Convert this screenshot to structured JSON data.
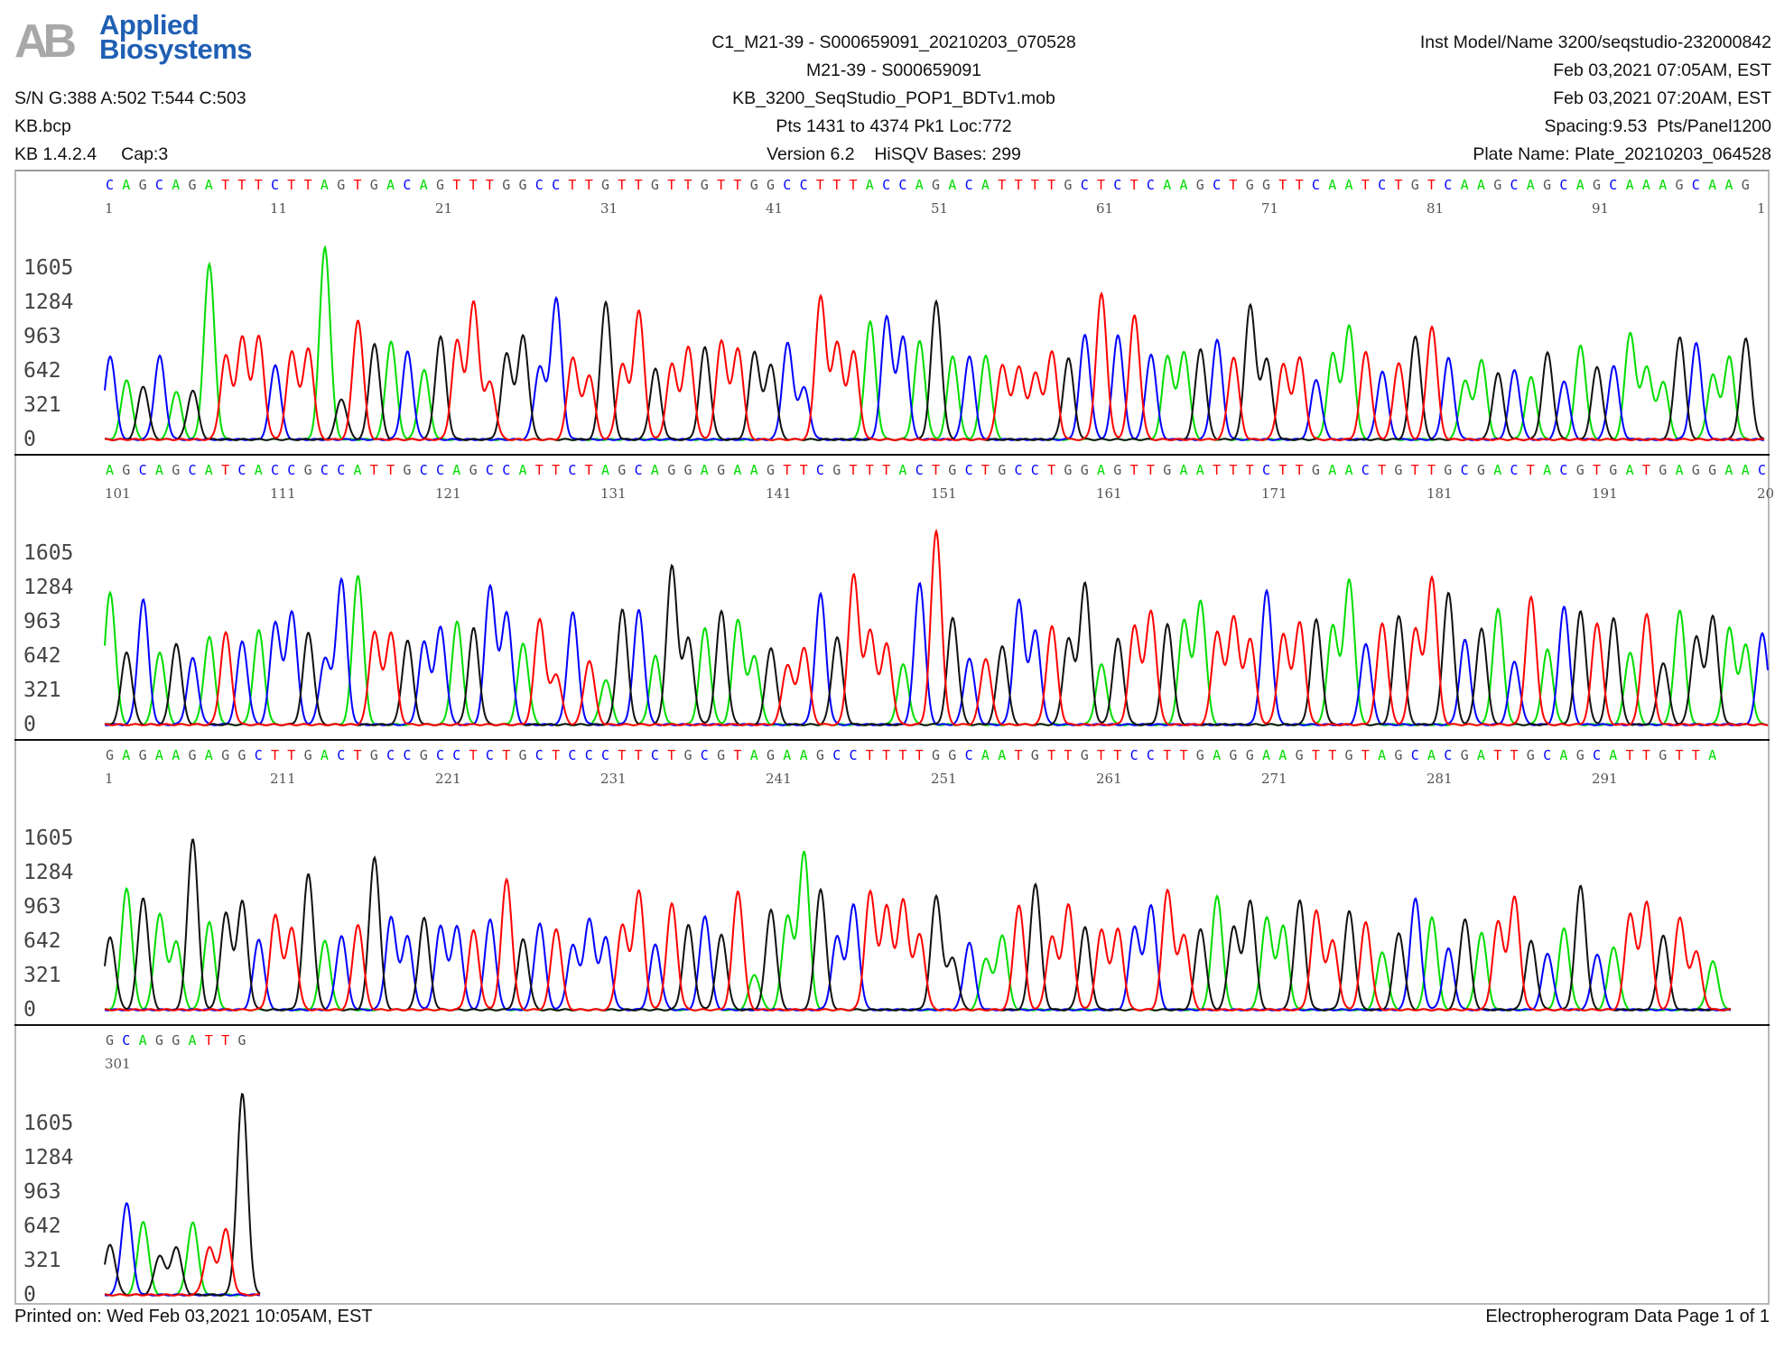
{
  "header": {
    "logo": {
      "mark": "AB",
      "line1": "Applied",
      "line2": "Biosystems"
    },
    "left": [
      "S/N G:388 A:502 T:544 C:503",
      "KB.bcp",
      "KB 1.4.2.4     Cap:3"
    ],
    "center": [
      "C1_M21-39 - S000659091_20210203_070528",
      "M21-39 - S000659091",
      "KB_3200_SeqStudio_POP1_BDTv1.mob",
      "Pts 1431 to 4374 Pk1 Loc:772",
      "Version 6.2    HiSQV Bases: 299"
    ],
    "right": [
      "Inst Model/Name 3200/seqstudio-232000842",
      "Feb 03,2021 07:05AM, EST",
      "Feb 03,2021 07:20AM, EST",
      "Spacing:9.53  Pts/Panel1200",
      "Plate Name: Plate_20210203_064528"
    ]
  },
  "footer": {
    "printed": "Printed on: Wed Feb 03,2021 10:05AM, EST",
    "page": "Electropherogram Data  Page 1 of 1"
  },
  "colors": {
    "A": "#00dd00",
    "C": "#0000ff",
    "G": "#111111",
    "T": "#ff0000"
  },
  "chart_data": {
    "type": "line",
    "title": "Electropherogram Data",
    "yticks": [
      "1605",
      "1284",
      "963",
      "642",
      "321",
      "0"
    ],
    "ylim": [
      0,
      1926
    ],
    "legend": {
      "A": "green",
      "C": "blue",
      "G": "black",
      "T": "red"
    },
    "panels": [
      {
        "sequence": "CAGCAGATTTCTTAGTGACAGTTTGGCCTTGTTGTTGTTGGCCTTTACCAGACATTTTGCTCTCAAGCTGGTTCAATCTGTCAAGCAGCAGCAAAGCAAG",
        "position_labels": [
          "1",
          "11",
          "21",
          "31",
          "41",
          "51",
          "61",
          "71",
          "81",
          "91",
          "1"
        ],
        "label_base_index": [
          0,
          10,
          20,
          30,
          40,
          50,
          60,
          70,
          80,
          90,
          100
        ],
        "peak_heights": [
          780,
          560,
          500,
          780,
          450,
          460,
          1640,
          780,
          950,
          960,
          700,
          820,
          850,
          1800,
          380,
          1120,
          900,
          920,
          820,
          650,
          960,
          920,
          1280,
          530,
          800,
          970,
          680,
          1320,
          770,
          600,
          1290,
          700,
          1200,
          660,
          700,
          860,
          860,
          920,
          850,
          820,
          700,
          900,
          480,
          1340,
          900,
          820,
          1100,
          1150,
          960,
          920,
          1290,
          780,
          780,
          790,
          700,
          680,
          620,
          820,
          760,
          980,
          1360,
          980,
          1160,
          800,
          780,
          820,
          850,
          930,
          770,
          1260,
          750,
          700,
          760,
          560,
          800,
          1060,
          820,
          640,
          720,
          970,
          1060,
          760,
          550,
          740,
          620,
          650,
          580,
          810,
          550,
          880,
          680,
          690,
          1000,
          680,
          540,
          960,
          900,
          600,
          770,
          940,
          860
        ],
        "estimated": true
      },
      {
        "sequence": "AGCAGCATCACCGCCATTGCCAGCCATTCTAGCAGGAGAAGTTCGTTTACTGCTGCCTGGAGTTGAATTTCTTGAACTGTTGCGACTACGTGATGAGGAAC",
        "position_labels": [
          "101",
          "111",
          "121",
          "131",
          "141",
          "151",
          "161",
          "171",
          "181",
          "191",
          "20"
        ],
        "label_base_index": [
          0,
          10,
          20,
          30,
          40,
          50,
          60,
          70,
          80,
          90,
          100
        ],
        "peak_heights": [
          1240,
          680,
          1170,
          680,
          760,
          620,
          820,
          860,
          780,
          880,
          960,
          1060,
          860,
          620,
          1360,
          1400,
          870,
          860,
          790,
          770,
          910,
          960,
          900,
          1300,
          1050,
          760,
          990,
          470,
          1050,
          600,
          420,
          1080,
          1070,
          640,
          1480,
          800,
          900,
          1060,
          980,
          640,
          720,
          560,
          720,
          1220,
          820,
          1400,
          870,
          750,
          560,
          1330,
          1810,
          1000,
          620,
          620,
          740,
          1160,
          870,
          920,
          800,
          1320,
          560,
          800,
          920,
          1060,
          940,
          980,
          1160,
          870,
          1010,
          800,
          1250,
          840,
          950,
          980,
          920,
          1350,
          760,
          950,
          1020,
          900,
          1380,
          1240,
          790,
          900,
          1080,
          590,
          1190,
          700,
          1110,
          1060,
          950,
          1000,
          680,
          1040,
          580,
          1070,
          820,
          1010,
          900,
          740,
          860
        ],
        "estimated": true
      },
      {
        "sequence": "GAGAAGAGGCTTGACTGCCGCCTCTGCTCCCTTCTGCGTAGAAGCCTTTTGGCAATGTTGTTCCTTGAGGAAGTTGTAGCACGATTGCAGCATTGTTA",
        "position_labels": [
          "1",
          "211",
          "221",
          "231",
          "241",
          "251",
          "261",
          "271",
          "281",
          "291"
        ],
        "label_base_index": [
          0,
          10,
          20,
          30,
          40,
          50,
          60,
          70,
          80,
          90
        ],
        "peak_heights": [
          680,
          1140,
          1050,
          900,
          640,
          1600,
          820,
          900,
          1010,
          660,
          880,
          760,
          1270,
          650,
          690,
          800,
          1430,
          860,
          680,
          860,
          780,
          780,
          740,
          850,
          1220,
          660,
          810,
          760,
          600,
          840,
          670,
          790,
          1110,
          610,
          990,
          790,
          880,
          700,
          1110,
          330,
          940,
          880,
          1480,
          1130,
          680,
          980,
          1100,
          960,
          1020,
          700,
          1060,
          480,
          630,
          480,
          700,
          980,
          1180,
          680,
          980,
          770,
          740,
          750,
          780,
          980,
          1120,
          700,
          760,
          1070,
          780,
          1020,
          860,
          780,
          1020,
          920,
          640,
          920,
          820,
          540,
          720,
          1040,
          870,
          570,
          850,
          720,
          820,
          1050,
          640,
          530,
          760,
          1160,
          520,
          590,
          900,
          1010,
          700,
          860,
          540,
          450,
          660
        ],
        "estimated": true
      },
      {
        "sequence": "GCAGGATTG",
        "position_labels": [
          "301"
        ],
        "label_base_index": [
          0
        ],
        "peak_heights": [
          470,
          860,
          690,
          370,
          450,
          680,
          440,
          610,
          1880
        ],
        "estimated": true
      }
    ]
  }
}
